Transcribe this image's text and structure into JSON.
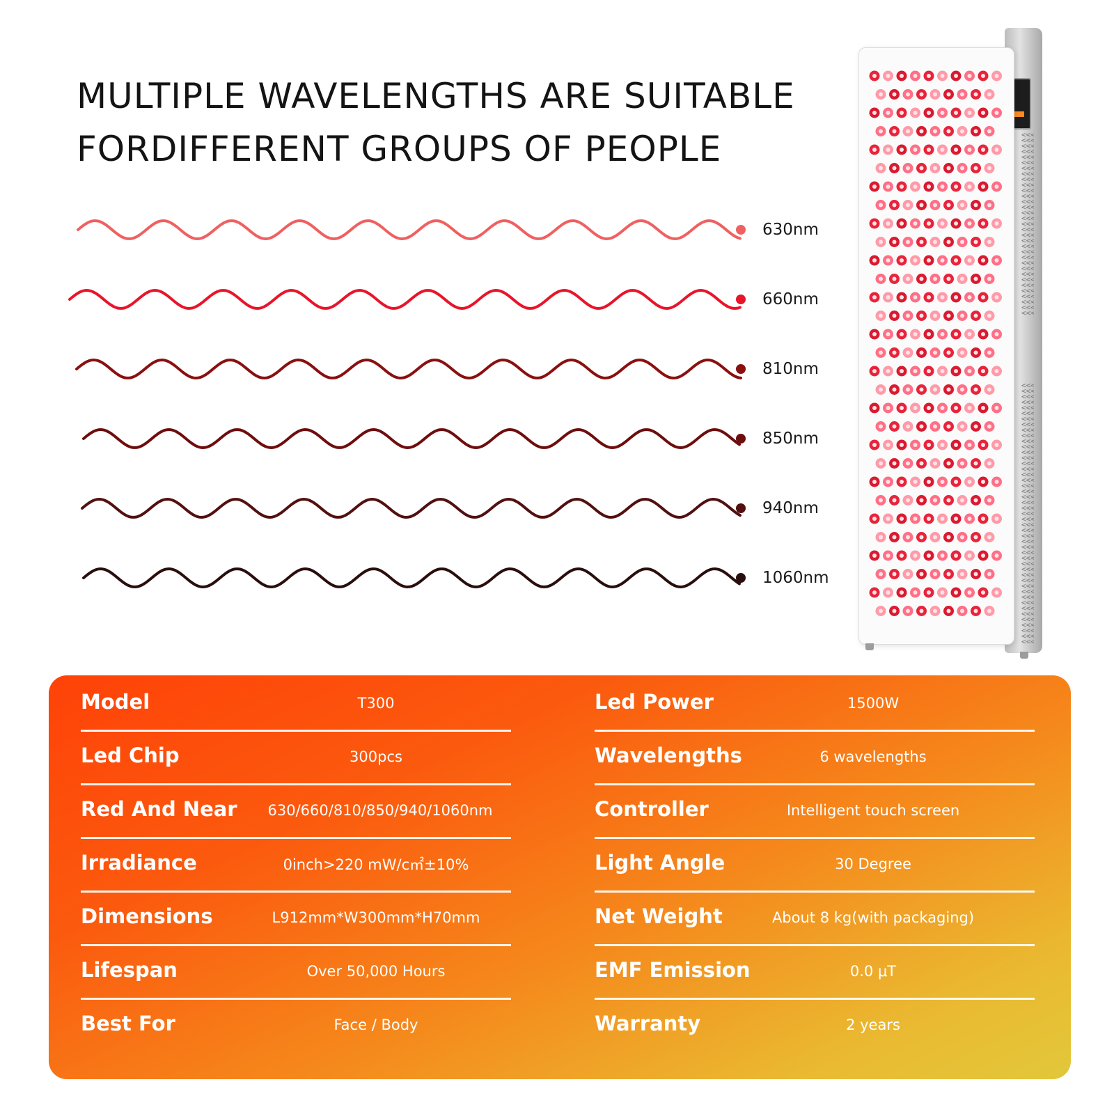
{
  "headline": {
    "line1": "MULTIPLE WAVELENGTHS ARE SUITABLE",
    "line2": "FORDIFFERENT GROUPS OF PEOPLE"
  },
  "wavelengths": [
    {
      "label": "630nm",
      "color": "#f06060"
    },
    {
      "label": "660nm",
      "color": "#e8152a"
    },
    {
      "label": "810nm",
      "color": "#8a1010"
    },
    {
      "label": "850nm",
      "color": "#6e0d0d"
    },
    {
      "label": "940nm",
      "color": "#521010"
    },
    {
      "label": "1060nm",
      "color": "#2a0e0e"
    }
  ],
  "product": {
    "led_colors": [
      "#e8233a",
      "#ff6f86",
      "#d91a2f",
      "#ff9aa8"
    ]
  },
  "specs": {
    "left": [
      {
        "label": "Model",
        "value": "T300"
      },
      {
        "label": "Led Chip",
        "value": "300pcs"
      },
      {
        "label": "Red And Near",
        "value": "630/660/810/850/940/1060nm"
      },
      {
        "label": "Irradiance",
        "value": "0inch>220 mW/c㎡±10%"
      },
      {
        "label": "Dimensions",
        "value": "L912mm*W300mm*H70mm"
      },
      {
        "label": "Lifespan",
        "value": "Over 50,000 Hours"
      },
      {
        "label": "Best For",
        "value": "Face / Body"
      }
    ],
    "right": [
      {
        "label": "Led Power",
        "value": "1500W"
      },
      {
        "label": "Wavelengths",
        "value": "6 wavelengths"
      },
      {
        "label": "Controller",
        "value": "Intelligent touch screen"
      },
      {
        "label": "Light Angle",
        "value": "30 Degree"
      },
      {
        "label": "Net Weight",
        "value": "About 8 kg(with packaging)"
      },
      {
        "label": "EMF Emission",
        "value": "0.0 μT"
      },
      {
        "label": "Warranty",
        "value": "2 years"
      }
    ]
  }
}
